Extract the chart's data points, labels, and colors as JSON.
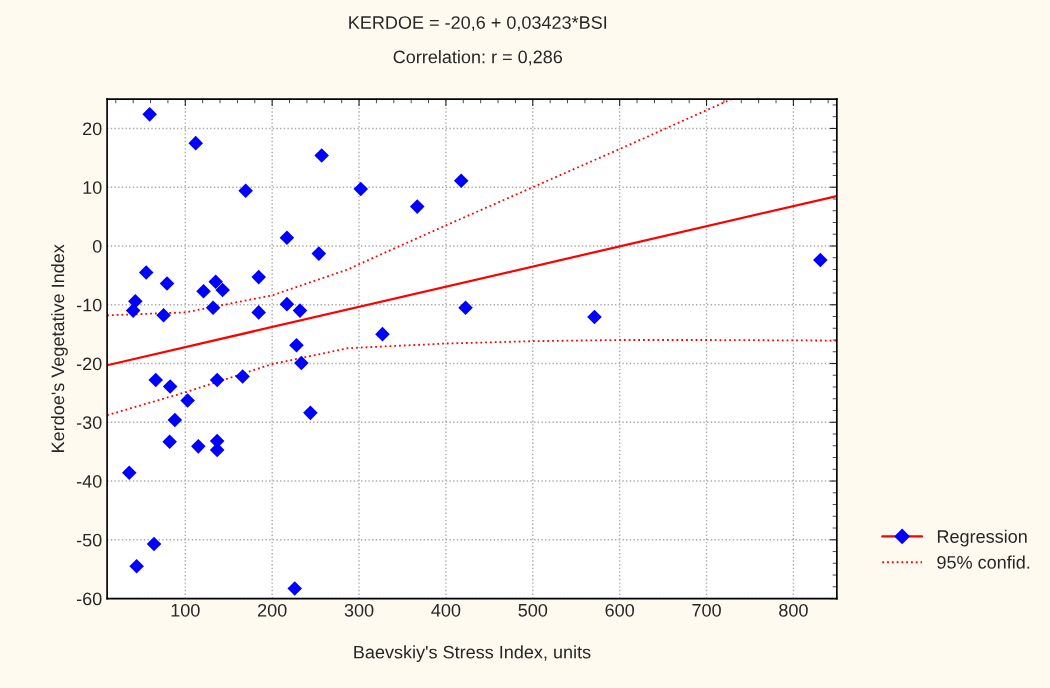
{
  "chart_data": {
    "type": "scatter",
    "title": "KERDOE = -20,6 + 0,03423*BSI",
    "subtitle": "Correlation: r = 0,286",
    "xlabel": "Baevskiy's Stress Index, units",
    "ylabel": "Kerdoe's Vegetative Index",
    "xlim": [
      10,
      850
    ],
    "xticks": [
      100,
      200,
      300,
      400,
      500,
      600,
      700,
      800
    ],
    "ylim": [
      -60,
      25
    ],
    "yticks": [
      -60,
      -50,
      -40,
      -30,
      -20,
      -10,
      0,
      10,
      20
    ],
    "grid": true,
    "legend": "bottom right",
    "series": [
      {
        "color": "#0000ff",
        "marker": "diamond",
        "x": [
          59,
          112,
          257,
          169.5,
          217,
          253.7,
          55,
          79,
          135,
          121,
          143,
          184.5,
          42.5,
          40,
          75,
          132,
          184.5,
          217,
          232,
          228,
          233.6,
          66,
          82.6,
          136.7,
          166,
          102.7,
          88,
          244,
          82,
          115,
          136.7,
          136.7,
          35.5,
          64,
          44,
          226,
          302,
          367,
          417.6,
          422.6,
          327,
          571,
          831
        ],
        "values": [
          22.4,
          17.5,
          15.4,
          9.4,
          1.4,
          -1.3,
          -4.5,
          -6.4,
          -6.1,
          -7.7,
          -7.5,
          -5.3,
          -9.4,
          -11.0,
          -11.8,
          -10.5,
          -11.3,
          -9.9,
          -11.0,
          -16.9,
          -19.9,
          -22.8,
          -23.9,
          -22.8,
          -22.2,
          -26.3,
          -29.6,
          -28.4,
          -33.3,
          -34.1,
          -33.2,
          -34.7,
          -38.6,
          -50.7,
          -54.5,
          -58.3,
          9.7,
          6.7,
          11.1,
          -10.5,
          -15.0,
          -12.1,
          -2.4
        ]
      },
      {
        "type": "line",
        "name": "Regression",
        "color": "#ff0000",
        "line_style": "solid",
        "x": [
          10,
          850
        ],
        "values": [
          -20.3,
          8.5
        ]
      },
      {
        "type": "line",
        "name": "95% confid.",
        "color": "#ff0000",
        "line_style": "dotted",
        "x": [
          10,
          100,
          200,
          287,
          300,
          400,
          500,
          600,
          700,
          729
        ],
        "values": [
          -11.8,
          -11.3,
          -8.4,
          -4.0,
          -3.1,
          3.5,
          10.0,
          16.5,
          23.1,
          25.0
        ]
      },
      {
        "type": "line",
        "color": "#ff0000",
        "line_style": "dotted",
        "x": [
          10,
          100,
          200,
          287,
          300,
          400,
          500,
          600,
          700,
          850
        ],
        "values": [
          -28.8,
          -24.9,
          -20.1,
          -17.4,
          -17.3,
          -16.6,
          -16.2,
          -16.0,
          -16.0,
          -16.1
        ]
      }
    ]
  }
}
